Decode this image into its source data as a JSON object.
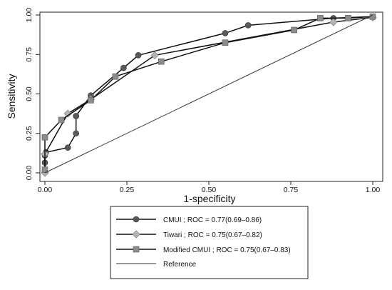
{
  "chart_data": {
    "type": "line",
    "title": "",
    "xlabel": "1-specificity",
    "ylabel": "Sensitivity",
    "xlim": [
      0,
      1
    ],
    "ylim": [
      0,
      1
    ],
    "x_ticks": [
      0,
      0.25,
      0.5,
      0.75,
      1
    ],
    "y_ticks": [
      0,
      0.25,
      0.5,
      0.75,
      1
    ],
    "x_tick_labels": [
      "0.00",
      "0.25",
      "0.50",
      "0.75",
      "1.00"
    ],
    "y_tick_labels": [
      "0.00",
      "0.25",
      "0.50",
      "0.75",
      "1.00"
    ],
    "grid": false,
    "legend_position": "bottom",
    "series": [
      {
        "name": "CMUI ; ROC = 0.77(0.69–0.86)",
        "marker": "circle",
        "color": "#5a5a5a",
        "line_color": "#111111",
        "x": [
          0,
          0,
          0,
          0.003,
          0.07,
          0.095,
          0.095,
          0.14,
          0.24,
          0.285,
          0.55,
          0.62,
          0.88,
          1.0
        ],
        "y": [
          0.01,
          0.065,
          0.11,
          0.13,
          0.16,
          0.25,
          0.36,
          0.49,
          0.665,
          0.745,
          0.885,
          0.935,
          0.98,
          0.99
        ]
      },
      {
        "name": "Tiwari ; ROC = 0.75(0.67–0.82)",
        "marker": "diamond",
        "color": "#b4b4b4",
        "line_color": "#111111",
        "x": [
          0,
          0,
          0.07,
          0.14,
          0.335,
          0.88,
          1.0
        ],
        "y": [
          0.0,
          0.12,
          0.375,
          0.465,
          0.745,
          0.955,
          0.985
        ]
      },
      {
        "name": "Modified CMUI ; ROC = 0.75(0.67–0.83)",
        "marker": "square",
        "color": "#8c8c8c",
        "line_color": "#111111",
        "x": [
          0,
          0,
          0.05,
          0.14,
          0.215,
          0.355,
          0.55,
          0.76,
          0.84,
          0.925,
          1.0
        ],
        "y": [
          0.02,
          0.225,
          0.335,
          0.46,
          0.61,
          0.705,
          0.825,
          0.905,
          0.98,
          0.98,
          0.99
        ]
      },
      {
        "name": "Reference",
        "marker": "none",
        "color": "#333333",
        "line_color": "#333333",
        "x": [
          0,
          1
        ],
        "y": [
          0,
          1
        ]
      }
    ]
  }
}
